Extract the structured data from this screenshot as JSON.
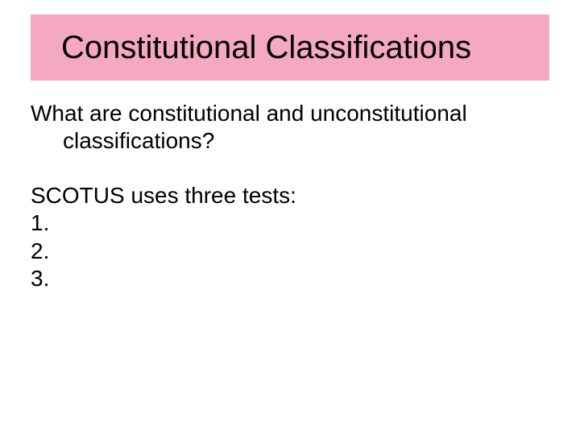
{
  "slide": {
    "title": "Constitutional Classifications",
    "title_bg": "#f5a8c3",
    "title_fontsize": 40,
    "body_fontsize": 28,
    "text_color": "#000000",
    "background_color": "#ffffff",
    "question_line1": "What are constitutional and unconstitutional",
    "question_line2": "classifications?",
    "lead_in": "SCOTUS uses three tests:",
    "items": {
      "n1": "1.",
      "n2": "2.",
      "n3": "3."
    }
  }
}
